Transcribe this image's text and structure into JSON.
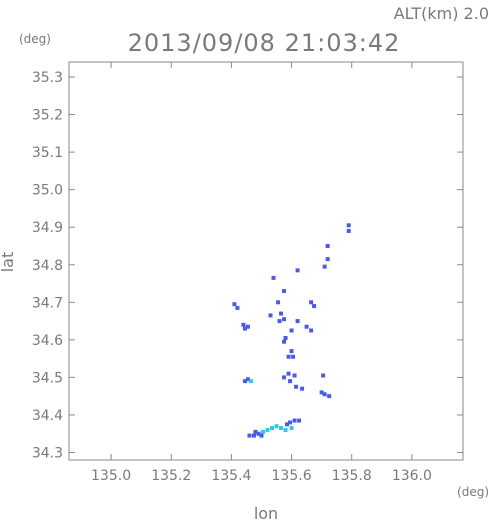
{
  "chart_data": {
    "type": "scatter",
    "title": "2013/09/08 21:03:42",
    "altitude_label": "ALT(km) 2.0",
    "xlabel": "lon",
    "ylabel": "lat",
    "x_unit": "(deg)",
    "y_unit": "(deg)",
    "xlim": [
      134.86,
      136.17
    ],
    "ylim": [
      34.28,
      35.34
    ],
    "x_ticks": [
      "135.0",
      "135.2",
      "135.4",
      "135.6",
      "135.8",
      "136.0"
    ],
    "x_tick_values": [
      135.0,
      135.2,
      135.4,
      135.6,
      135.8,
      136.0
    ],
    "y_ticks": [
      "34.3",
      "34.4",
      "34.5",
      "34.6",
      "34.7",
      "34.8",
      "34.9",
      "35.0",
      "35.1",
      "35.2",
      "35.3"
    ],
    "y_tick_values": [
      34.3,
      34.4,
      34.5,
      34.6,
      34.7,
      34.8,
      34.9,
      35.0,
      35.1,
      35.2,
      35.3
    ],
    "grid": false,
    "colors": {
      "main": "#4a5ae8",
      "light": "#2ec8ec",
      "axis": "#8a8a8a"
    },
    "points": [
      {
        "x": 135.79,
        "y": 34.905,
        "c": "main"
      },
      {
        "x": 135.79,
        "y": 34.89,
        "c": "main"
      },
      {
        "x": 135.72,
        "y": 34.85,
        "c": "main"
      },
      {
        "x": 135.72,
        "y": 34.815,
        "c": "main"
      },
      {
        "x": 135.71,
        "y": 34.795,
        "c": "main"
      },
      {
        "x": 135.62,
        "y": 34.785,
        "c": "main"
      },
      {
        "x": 135.54,
        "y": 34.765,
        "c": "main"
      },
      {
        "x": 135.575,
        "y": 34.73,
        "c": "main"
      },
      {
        "x": 135.41,
        "y": 34.695,
        "c": "main"
      },
      {
        "x": 135.42,
        "y": 34.685,
        "c": "main"
      },
      {
        "x": 135.665,
        "y": 34.7,
        "c": "main"
      },
      {
        "x": 135.675,
        "y": 34.69,
        "c": "main"
      },
      {
        "x": 135.555,
        "y": 34.7,
        "c": "main"
      },
      {
        "x": 135.53,
        "y": 34.665,
        "c": "main"
      },
      {
        "x": 135.565,
        "y": 34.67,
        "c": "main"
      },
      {
        "x": 135.575,
        "y": 34.655,
        "c": "main"
      },
      {
        "x": 135.56,
        "y": 34.65,
        "c": "main"
      },
      {
        "x": 135.62,
        "y": 34.65,
        "c": "main"
      },
      {
        "x": 135.44,
        "y": 34.64,
        "c": "main"
      },
      {
        "x": 135.445,
        "y": 34.63,
        "c": "main"
      },
      {
        "x": 135.455,
        "y": 34.635,
        "c": "main"
      },
      {
        "x": 135.6,
        "y": 34.625,
        "c": "main"
      },
      {
        "x": 135.65,
        "y": 34.635,
        "c": "main"
      },
      {
        "x": 135.665,
        "y": 34.625,
        "c": "main"
      },
      {
        "x": 135.58,
        "y": 34.605,
        "c": "main"
      },
      {
        "x": 135.575,
        "y": 34.595,
        "c": "main"
      },
      {
        "x": 135.59,
        "y": 34.555,
        "c": "main"
      },
      {
        "x": 135.605,
        "y": 34.555,
        "c": "main"
      },
      {
        "x": 135.6,
        "y": 34.57,
        "c": "main"
      },
      {
        "x": 135.59,
        "y": 34.51,
        "c": "main"
      },
      {
        "x": 135.61,
        "y": 34.505,
        "c": "main"
      },
      {
        "x": 135.595,
        "y": 34.49,
        "c": "main"
      },
      {
        "x": 135.575,
        "y": 34.5,
        "c": "main"
      },
      {
        "x": 135.705,
        "y": 34.505,
        "c": "main"
      },
      {
        "x": 135.615,
        "y": 34.475,
        "c": "main"
      },
      {
        "x": 135.635,
        "y": 34.47,
        "c": "main"
      },
      {
        "x": 135.455,
        "y": 34.495,
        "c": "main"
      },
      {
        "x": 135.445,
        "y": 34.49,
        "c": "main"
      },
      {
        "x": 135.465,
        "y": 34.49,
        "c": "light"
      },
      {
        "x": 135.71,
        "y": 34.455,
        "c": "main"
      },
      {
        "x": 135.725,
        "y": 34.45,
        "c": "main"
      },
      {
        "x": 135.7,
        "y": 34.46,
        "c": "main"
      },
      {
        "x": 135.61,
        "y": 34.385,
        "c": "main"
      },
      {
        "x": 135.625,
        "y": 34.385,
        "c": "main"
      },
      {
        "x": 135.595,
        "y": 34.38,
        "c": "main"
      },
      {
        "x": 135.585,
        "y": 34.375,
        "c": "main"
      },
      {
        "x": 135.55,
        "y": 34.37,
        "c": "light"
      },
      {
        "x": 135.565,
        "y": 34.365,
        "c": "light"
      },
      {
        "x": 135.535,
        "y": 34.365,
        "c": "light"
      },
      {
        "x": 135.52,
        "y": 34.36,
        "c": "light"
      },
      {
        "x": 135.505,
        "y": 34.355,
        "c": "light"
      },
      {
        "x": 135.49,
        "y": 34.35,
        "c": "main"
      },
      {
        "x": 135.475,
        "y": 34.345,
        "c": "main"
      },
      {
        "x": 135.46,
        "y": 34.345,
        "c": "main"
      },
      {
        "x": 135.5,
        "y": 34.345,
        "c": "main"
      },
      {
        "x": 135.58,
        "y": 34.36,
        "c": "light"
      },
      {
        "x": 135.6,
        "y": 34.365,
        "c": "light"
      },
      {
        "x": 135.48,
        "y": 34.355,
        "c": "main"
      }
    ]
  }
}
